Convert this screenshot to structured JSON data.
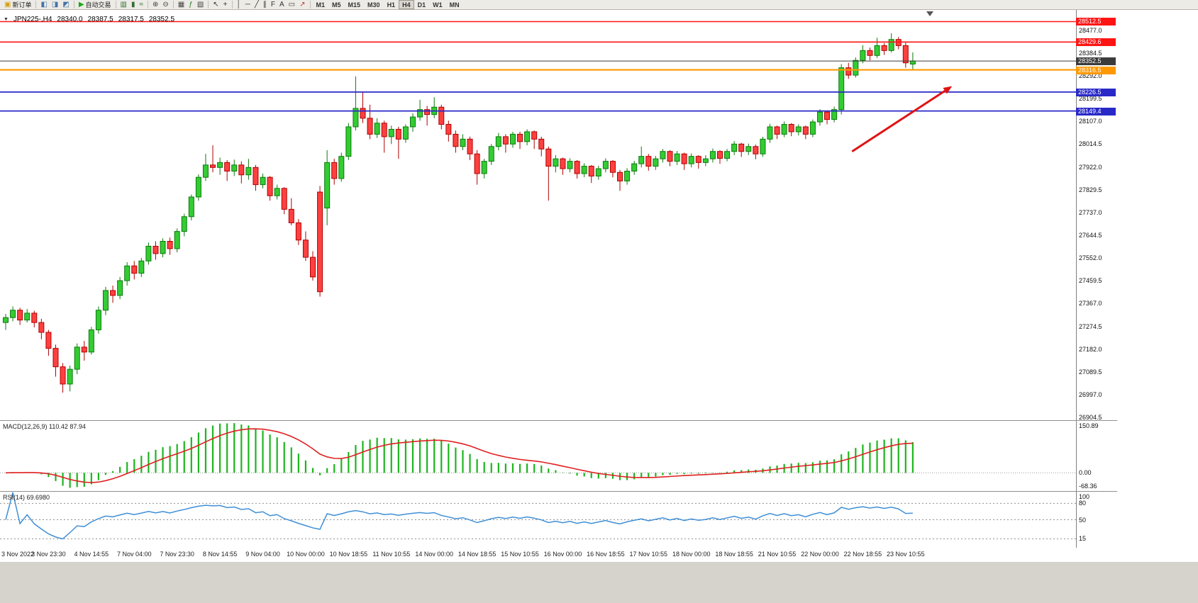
{
  "toolbar": {
    "groups": [
      {
        "items": [
          {
            "name": "new-order-button",
            "glyph": "▣",
            "glyph_color": "#d4a017",
            "label": "新订单"
          }
        ]
      },
      {
        "items": [
          {
            "name": "market-watch-button",
            "glyph": "◧",
            "glyph_color": "#4472a8"
          },
          {
            "name": "navigator-button",
            "glyph": "◨",
            "glyph_color": "#4472a8"
          },
          {
            "name": "terminal-button",
            "glyph": "◩",
            "glyph_color": "#4472a8"
          }
        ]
      },
      {
        "items": [
          {
            "name": "autotrading-button",
            "glyph": "▶",
            "glyph_color": "#18a818",
            "label": "自动交易"
          }
        ]
      },
      {
        "items": [
          {
            "name": "bar-chart-button",
            "glyph": "▥",
            "glyph_color": "#2e6e2e"
          },
          {
            "name": "candlestick-chart-button",
            "glyph": "▮",
            "glyph_color": "#2e6e2e"
          },
          {
            "name": "line-chart-button",
            "glyph": "≈",
            "glyph_color": "#2e6e2e"
          }
        ]
      },
      {
        "items": [
          {
            "name": "zoom-in-button",
            "glyph": "⊕",
            "glyph_color": "#444444"
          },
          {
            "name": "zoom-out-button",
            "glyph": "⊖",
            "glyph_color": "#444444"
          }
        ]
      },
      {
        "items": [
          {
            "name": "tile-windows-button",
            "glyph": "▦",
            "glyph_color": "#444444"
          },
          {
            "name": "indicators-button",
            "glyph": "ƒ",
            "glyph_color": "#2a7a2a"
          },
          {
            "name": "templates-button",
            "glyph": "▧",
            "glyph_color": "#444444"
          }
        ]
      },
      {
        "items": [
          {
            "name": "cursor-button",
            "glyph": "↖",
            "glyph_color": "#333333"
          },
          {
            "name": "crosshair-button",
            "glyph": "+",
            "glyph_color": "#333333"
          }
        ]
      },
      {
        "items": [
          {
            "name": "vertical-line-button",
            "glyph": "│",
            "glyph_color": "#333333"
          },
          {
            "name": "horizontal-line-button",
            "glyph": "─",
            "glyph_color": "#333333"
          },
          {
            "name": "trendline-button",
            "glyph": "╱",
            "glyph_color": "#333333"
          },
          {
            "name": "channel-button",
            "glyph": "∥",
            "glyph_color": "#333333"
          },
          {
            "name": "fibonacci-button",
            "glyph": "F",
            "glyph_color": "#333333"
          },
          {
            "name": "text-button",
            "glyph": "A",
            "glyph_color": "#333333"
          },
          {
            "name": "label-button",
            "glyph": "▭",
            "glyph_color": "#333333"
          },
          {
            "name": "arrows-button",
            "glyph": "↗",
            "glyph_color": "#c03030"
          }
        ]
      }
    ],
    "timeframes": [
      "M1",
      "M5",
      "M15",
      "M30",
      "H1",
      "H4",
      "D1",
      "W1",
      "MN"
    ],
    "active_timeframe": "H4"
  },
  "chart_header": {
    "symbol_period": "JPN225-,H4",
    "open": "28340.0",
    "high": "28387.5",
    "low": "28317.5",
    "close": "28352.5"
  },
  "chart_data": {
    "type": "candlestick",
    "symbol": "JPN225-",
    "timeframe": "H4",
    "ylim": [
      26896,
      28560
    ],
    "label_step_bars": 6,
    "price_ticks": [
      28477.0,
      28384.5,
      28292.0,
      28199.5,
      28107.0,
      28014.5,
      27922.0,
      27829.5,
      27737.0,
      27644.5,
      27552.0,
      27459.5,
      27367.0,
      27274.5,
      27182.0,
      27089.5,
      26997.0,
      26904.5
    ],
    "time_labels": [
      "3 Nov 2022",
      "3 Nov 23:30",
      "4 Nov 14:55",
      "7 Nov 04:00",
      "7 Nov 23:30",
      "8 Nov 14:55",
      "9 Nov 04:00",
      "10 Nov 00:00",
      "10 Nov 18:55",
      "11 Nov 10:55",
      "14 Nov 00:00",
      "14 Nov 18:55",
      "15 Nov 10:55",
      "16 Nov 00:00",
      "16 Nov 18:55",
      "17 Nov 10:55",
      "18 Nov 00:00",
      "18 Nov 18:55",
      "21 Nov 10:55",
      "22 Nov 00:00",
      "22 Nov 18:55",
      "23 Nov 10:55"
    ],
    "candles": [
      [
        27290,
        27325,
        27260,
        27310
      ],
      [
        27310,
        27355,
        27295,
        27340
      ],
      [
        27340,
        27350,
        27280,
        27300
      ],
      [
        27300,
        27345,
        27290,
        27328
      ],
      [
        27328,
        27338,
        27270,
        27290
      ],
      [
        27290,
        27305,
        27222,
        27250
      ],
      [
        27250,
        27260,
        27155,
        27185
      ],
      [
        27185,
        27200,
        27070,
        27110
      ],
      [
        27110,
        27125,
        27005,
        27040
      ],
      [
        27040,
        27115,
        27010,
        27100
      ],
      [
        27100,
        27205,
        27080,
        27190
      ],
      [
        27190,
        27215,
        27135,
        27170
      ],
      [
        27170,
        27272,
        27160,
        27260
      ],
      [
        27260,
        27355,
        27245,
        27340
      ],
      [
        27340,
        27435,
        27320,
        27420
      ],
      [
        27420,
        27440,
        27370,
        27400
      ],
      [
        27400,
        27475,
        27385,
        27460
      ],
      [
        27460,
        27535,
        27440,
        27520
      ],
      [
        27520,
        27540,
        27465,
        27490
      ],
      [
        27490,
        27552,
        27475,
        27540
      ],
      [
        27540,
        27615,
        27525,
        27600
      ],
      [
        27600,
        27620,
        27545,
        27570
      ],
      [
        27570,
        27632,
        27555,
        27620
      ],
      [
        27620,
        27635,
        27565,
        27590
      ],
      [
        27590,
        27672,
        27575,
        27660
      ],
      [
        27660,
        27732,
        27640,
        27720
      ],
      [
        27720,
        27810,
        27705,
        27800
      ],
      [
        27800,
        27892,
        27785,
        27880
      ],
      [
        27880,
        27975,
        27865,
        27930
      ],
      [
        27930,
        28010,
        27900,
        27920
      ],
      [
        27920,
        27960,
        27890,
        27940
      ],
      [
        27940,
        27950,
        27865,
        27905
      ],
      [
        27905,
        27952,
        27885,
        27930
      ],
      [
        27930,
        27945,
        27855,
        27890
      ],
      [
        27890,
        27955,
        27870,
        27920
      ],
      [
        27920,
        27930,
        27825,
        27850
      ],
      [
        27850,
        27895,
        27835,
        27880
      ],
      [
        27880,
        27885,
        27785,
        27805
      ],
      [
        27805,
        27850,
        27790,
        27835
      ],
      [
        27835,
        27840,
        27730,
        27750
      ],
      [
        27750,
        27795,
        27685,
        27695
      ],
      [
        27695,
        27710,
        27605,
        27625
      ],
      [
        27625,
        27660,
        27540,
        27555
      ],
      [
        27555,
        27580,
        27460,
        27475
      ],
      [
        27820,
        27845,
        27395,
        27415
      ],
      [
        27755,
        27990,
        27685,
        27940
      ],
      [
        27940,
        27955,
        27850,
        27875
      ],
      [
        27875,
        27980,
        27862,
        27965
      ],
      [
        27965,
        28100,
        27950,
        28085
      ],
      [
        28085,
        28290,
        28070,
        28160
      ],
      [
        28160,
        28225,
        28100,
        28120
      ],
      [
        28120,
        28175,
        28035,
        28055
      ],
      [
        28055,
        28120,
        28040,
        28100
      ],
      [
        28100,
        28110,
        27980,
        28045
      ],
      [
        28045,
        28090,
        28015,
        28075
      ],
      [
        28075,
        28085,
        27955,
        28035
      ],
      [
        28035,
        28095,
        28020,
        28085
      ],
      [
        28085,
        28140,
        28065,
        28125
      ],
      [
        28125,
        28195,
        28110,
        28155
      ],
      [
        28155,
        28170,
        28090,
        28135
      ],
      [
        28135,
        28205,
        28120,
        28165
      ],
      [
        28165,
        28175,
        28075,
        28095
      ],
      [
        28095,
        28110,
        28025,
        28055
      ],
      [
        28055,
        28070,
        27980,
        28005
      ],
      [
        28005,
        28055,
        27990,
        28035
      ],
      [
        28035,
        28045,
        27950,
        27975
      ],
      [
        27975,
        27990,
        27850,
        27895
      ],
      [
        27895,
        27955,
        27875,
        27945
      ],
      [
        27945,
        28015,
        27930,
        28005
      ],
      [
        28005,
        28060,
        27990,
        28045
      ],
      [
        28045,
        28055,
        27980,
        28015
      ],
      [
        28015,
        28065,
        28000,
        28055
      ],
      [
        28055,
        28065,
        27995,
        28025
      ],
      [
        28025,
        28075,
        28010,
        28065
      ],
      [
        28065,
        28070,
        27995,
        28035
      ],
      [
        28035,
        28045,
        27965,
        27995
      ],
      [
        27995,
        28005,
        27785,
        27925
      ],
      [
        27925,
        27970,
        27900,
        27955
      ],
      [
        27955,
        27960,
        27890,
        27915
      ],
      [
        27915,
        27957,
        27900,
        27945
      ],
      [
        27945,
        27950,
        27875,
        27895
      ],
      [
        27895,
        27937,
        27880,
        27925
      ],
      [
        27925,
        27930,
        27857,
        27885
      ],
      [
        27885,
        27927,
        27870,
        27915
      ],
      [
        27915,
        27957,
        27900,
        27945
      ],
      [
        27945,
        27950,
        27880,
        27900
      ],
      [
        27900,
        27910,
        27825,
        27865
      ],
      [
        27865,
        27917,
        27850,
        27905
      ],
      [
        27905,
        27947,
        27890,
        27935
      ],
      [
        27935,
        28005,
        27920,
        27965
      ],
      [
        27965,
        27975,
        27907,
        27925
      ],
      [
        27925,
        27967,
        27910,
        27955
      ],
      [
        27955,
        27995,
        27940,
        27985
      ],
      [
        27985,
        27990,
        27925,
        27945
      ],
      [
        27945,
        27987,
        27930,
        27975
      ],
      [
        27975,
        27980,
        27910,
        27935
      ],
      [
        27935,
        27977,
        27920,
        27965
      ],
      [
        27965,
        27970,
        27915,
        27940
      ],
      [
        27940,
        27970,
        27925,
        27955
      ],
      [
        27955,
        27997,
        27940,
        27985
      ],
      [
        27985,
        27990,
        27935,
        27957
      ],
      [
        27957,
        27995,
        27945,
        27985
      ],
      [
        27985,
        28027,
        27970,
        28015
      ],
      [
        28015,
        28020,
        27963,
        27985
      ],
      [
        27985,
        28017,
        27970,
        28005
      ],
      [
        28005,
        28013,
        27953,
        27975
      ],
      [
        27975,
        28045,
        27963,
        28035
      ],
      [
        28035,
        28097,
        28020,
        28085
      ],
      [
        28085,
        28090,
        28035,
        28055
      ],
      [
        28055,
        28107,
        28043,
        28095
      ],
      [
        28095,
        28100,
        28047,
        28065
      ],
      [
        28065,
        28095,
        28050,
        28085
      ],
      [
        28085,
        28090,
        28035,
        28055
      ],
      [
        28055,
        28115,
        28043,
        28105
      ],
      [
        28105,
        28157,
        28090,
        28145
      ],
      [
        28145,
        28150,
        28095,
        28115
      ],
      [
        28115,
        28167,
        28103,
        28155
      ],
      [
        28155,
        28340,
        28135,
        28325
      ],
      [
        28325,
        28345,
        28280,
        28295
      ],
      [
        28295,
        28367,
        28285,
        28355
      ],
      [
        28355,
        28417,
        28343,
        28395
      ],
      [
        28395,
        28407,
        28355,
        28375
      ],
      [
        28375,
        28447,
        28365,
        28415
      ],
      [
        28415,
        28425,
        28377,
        28395
      ],
      [
        28395,
        28465,
        28387,
        28440
      ],
      [
        28440,
        28450,
        28400,
        28415
      ],
      [
        28415,
        28427,
        28325,
        28345
      ],
      [
        28340,
        28387.5,
        28317.5,
        28352.5
      ]
    ],
    "hlines": [
      {
        "price": 28512.5,
        "label": "28512.5",
        "color": "#ff1414",
        "width": 1.6
      },
      {
        "price": 28429.6,
        "label": "28429.6",
        "color": "#ff1414",
        "width": 1.6
      },
      {
        "price": 28316.5,
        "label": "28316.5",
        "color": "#ff9800",
        "width": 2.2
      },
      {
        "price": 28226.5,
        "label": "28226.5",
        "color": "#2929c8",
        "width": 1.8
      },
      {
        "price": 28149.4,
        "label": "28149.4",
        "color": "#2929c8",
        "width": 1.8
      }
    ],
    "current_price": {
      "value": 28352.5,
      "label": "28352.5",
      "color": "#3b3b3b"
    },
    "trend_arrow": {
      "from": {
        "bar": 118.5,
        "price": 27985
      },
      "to": {
        "bar": 132.5,
        "price": 28250
      },
      "color": "#e01313"
    },
    "indicators": {
      "macd": {
        "label": "MACD(12,26,9) 110.42 87.94",
        "params": [
          12,
          26,
          9
        ],
        "values_shown": [
          "110.42",
          "87.94"
        ],
        "scale_labels": [
          "150.89",
          "0.00",
          "-68.36"
        ],
        "histogram_color": "#1db51d",
        "signal_color": "#e02020"
      },
      "rsi": {
        "label": "RSI(14) 69.6980",
        "period": 14,
        "value_shown": "69.6980",
        "range": [
          0,
          100
        ],
        "levels": [
          80,
          50,
          15
        ],
        "scale_labels": [
          "100",
          "80",
          "50",
          "15"
        ],
        "line_color": "#3e8fd6"
      }
    },
    "colors": {
      "bull": "#33cc33",
      "bull_border": "#0c7a0c",
      "bear": "#ff4040",
      "bear_border": "#b00000",
      "background": "#ffffff",
      "axis_text": "#111111"
    }
  }
}
